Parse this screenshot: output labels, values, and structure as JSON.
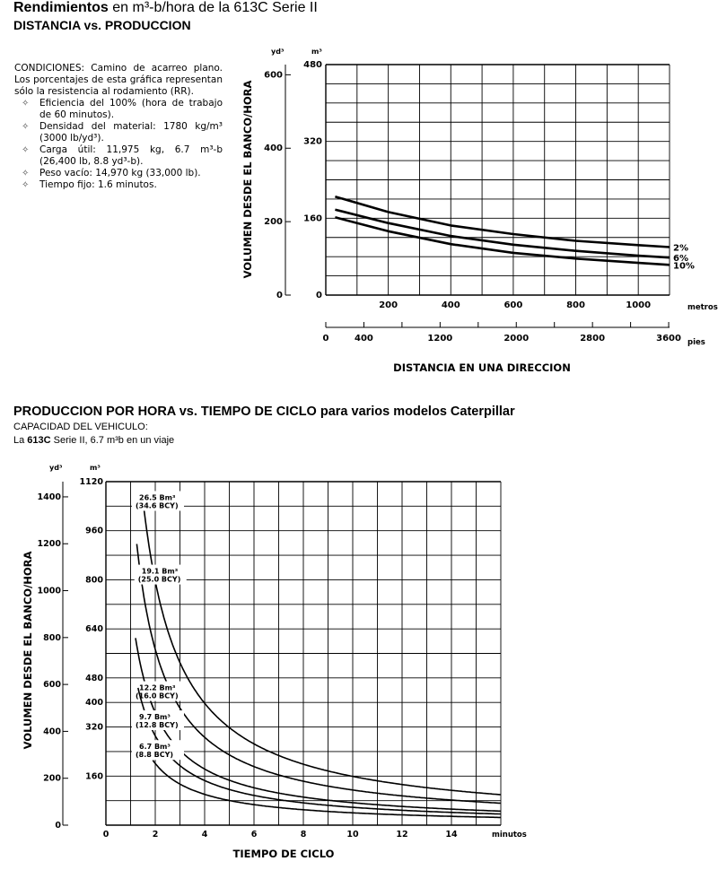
{
  "header": {
    "title_bold": "Rendimientos",
    "title_rest": " en m³-b/hora de la 613C Serie II",
    "subtitle": "DISTANCIA vs. PRODUCCION"
  },
  "conditions": {
    "intro": "CONDICIONES: Camino de acarreo plano. Los porcentajes de esta gráfica representan sólo la resistencia al rodamiento (RR).",
    "bullet_glyph": "✧",
    "items": [
      "Eficiencia del 100% (hora de trabajo de 60 minutos).",
      "Densidad del material: 1780 kg/m³ (3000 lb/yd³).",
      "Carga útil: 11,975 kg, 6.7 m³-b (26,400 lb, 8.8 yd³-b).",
      "Peso vacío: 14,970 kg (33,000 lb).",
      "Tiempo fijo: 1.6 minutos."
    ]
  },
  "section2": {
    "title": "PRODUCCION POR HORA vs. TIEMPO DE CICLO para varios modelos Caterpillar",
    "capacity_label": "CAPACIDAD DEL VEHICULO:",
    "capacity_prefix": "La ",
    "capacity_model": "613C",
    "capacity_rest": " Serie II, 6.7 m³b en un viaje"
  },
  "chart_data": [
    {
      "type": "line",
      "ylabel": "VOLUMEN DESDE EL BANCO/HORA",
      "xlabel": "DISTANCIA EN UNA DIRECCION",
      "y_unit_left": "yd³",
      "y_unit_right": "m³",
      "x_unit_top": "metros",
      "x_unit_bottom": "pies",
      "xlim": [
        0,
        1100
      ],
      "ylim_m3": [
        0,
        480
      ],
      "y_ticks_yd3": [
        "600",
        "400",
        "200",
        "0"
      ],
      "y_ticks_m3": [
        "480",
        "320",
        "160",
        "0"
      ],
      "x_ticks_m": [
        "200",
        "400",
        "600",
        "800",
        "1000"
      ],
      "x_ticks_ft": [
        "0",
        "400",
        "1200",
        "2000",
        "2800",
        "3600"
      ],
      "grid": true,
      "series": [
        {
          "name": "2%",
          "x": [
            30,
            200,
            400,
            600,
            800,
            1000,
            1100
          ],
          "values": [
            205,
            173,
            145,
            127,
            113,
            104,
            100
          ]
        },
        {
          "name": "6%",
          "x": [
            30,
            200,
            400,
            600,
            800,
            1000,
            1100
          ],
          "values": [
            178,
            150,
            123,
            105,
            92,
            82,
            78
          ]
        },
        {
          "name": "10%",
          "x": [
            30,
            200,
            400,
            600,
            800,
            1000,
            1100
          ],
          "values": [
            162,
            133,
            106,
            88,
            76,
            67,
            63
          ]
        }
      ]
    },
    {
      "type": "line",
      "ylabel": "VOLUMEN DESDE EL BANCO/HORA",
      "xlabel": "TIEMPO DE CICLO",
      "y_unit_left": "yd³",
      "y_unit_right": "m³",
      "x_unit": "minutos",
      "xlim": [
        0,
        16
      ],
      "ylim_m3": [
        0,
        1120
      ],
      "y_ticks_yd3": [
        "1400",
        "1200",
        "1000",
        "800",
        "600",
        "400",
        "200",
        "0"
      ],
      "y_ticks_m3": [
        "1120",
        "960",
        "800",
        "640",
        "480",
        "400",
        "320",
        "160"
      ],
      "x_ticks": [
        "0",
        "2",
        "4",
        "6",
        "8",
        "10",
        "12",
        "14"
      ],
      "grid": true,
      "series": [
        {
          "name": "26.5 Bm³ (34.6 BCY)",
          "label": "26.5 Bm³",
          "label2": "(34.6 BCY)",
          "load_m3": 26.5
        },
        {
          "name": "19.1 Bm³ (25.0 BCY)",
          "label": "19.1 Bm³",
          "label2": "(25.0 BCY)",
          "load_m3": 19.1
        },
        {
          "name": "12.2 Bm³ (16.0 BCY)",
          "label": "12.2 Bm³",
          "label2": "(16.0 BCY)",
          "load_m3": 12.2
        },
        {
          "name": "9.7 Bm³ (12.8 BCY)",
          "label": "9.7 Bm³",
          "label2": "(12.8 BCY)",
          "load_m3": 9.7
        },
        {
          "name": "6.7 Bm³ (8.8 BCY)",
          "label": "6.7 Bm³",
          "label2": "(8.8 BCY)",
          "load_m3": 6.7
        }
      ]
    }
  ]
}
